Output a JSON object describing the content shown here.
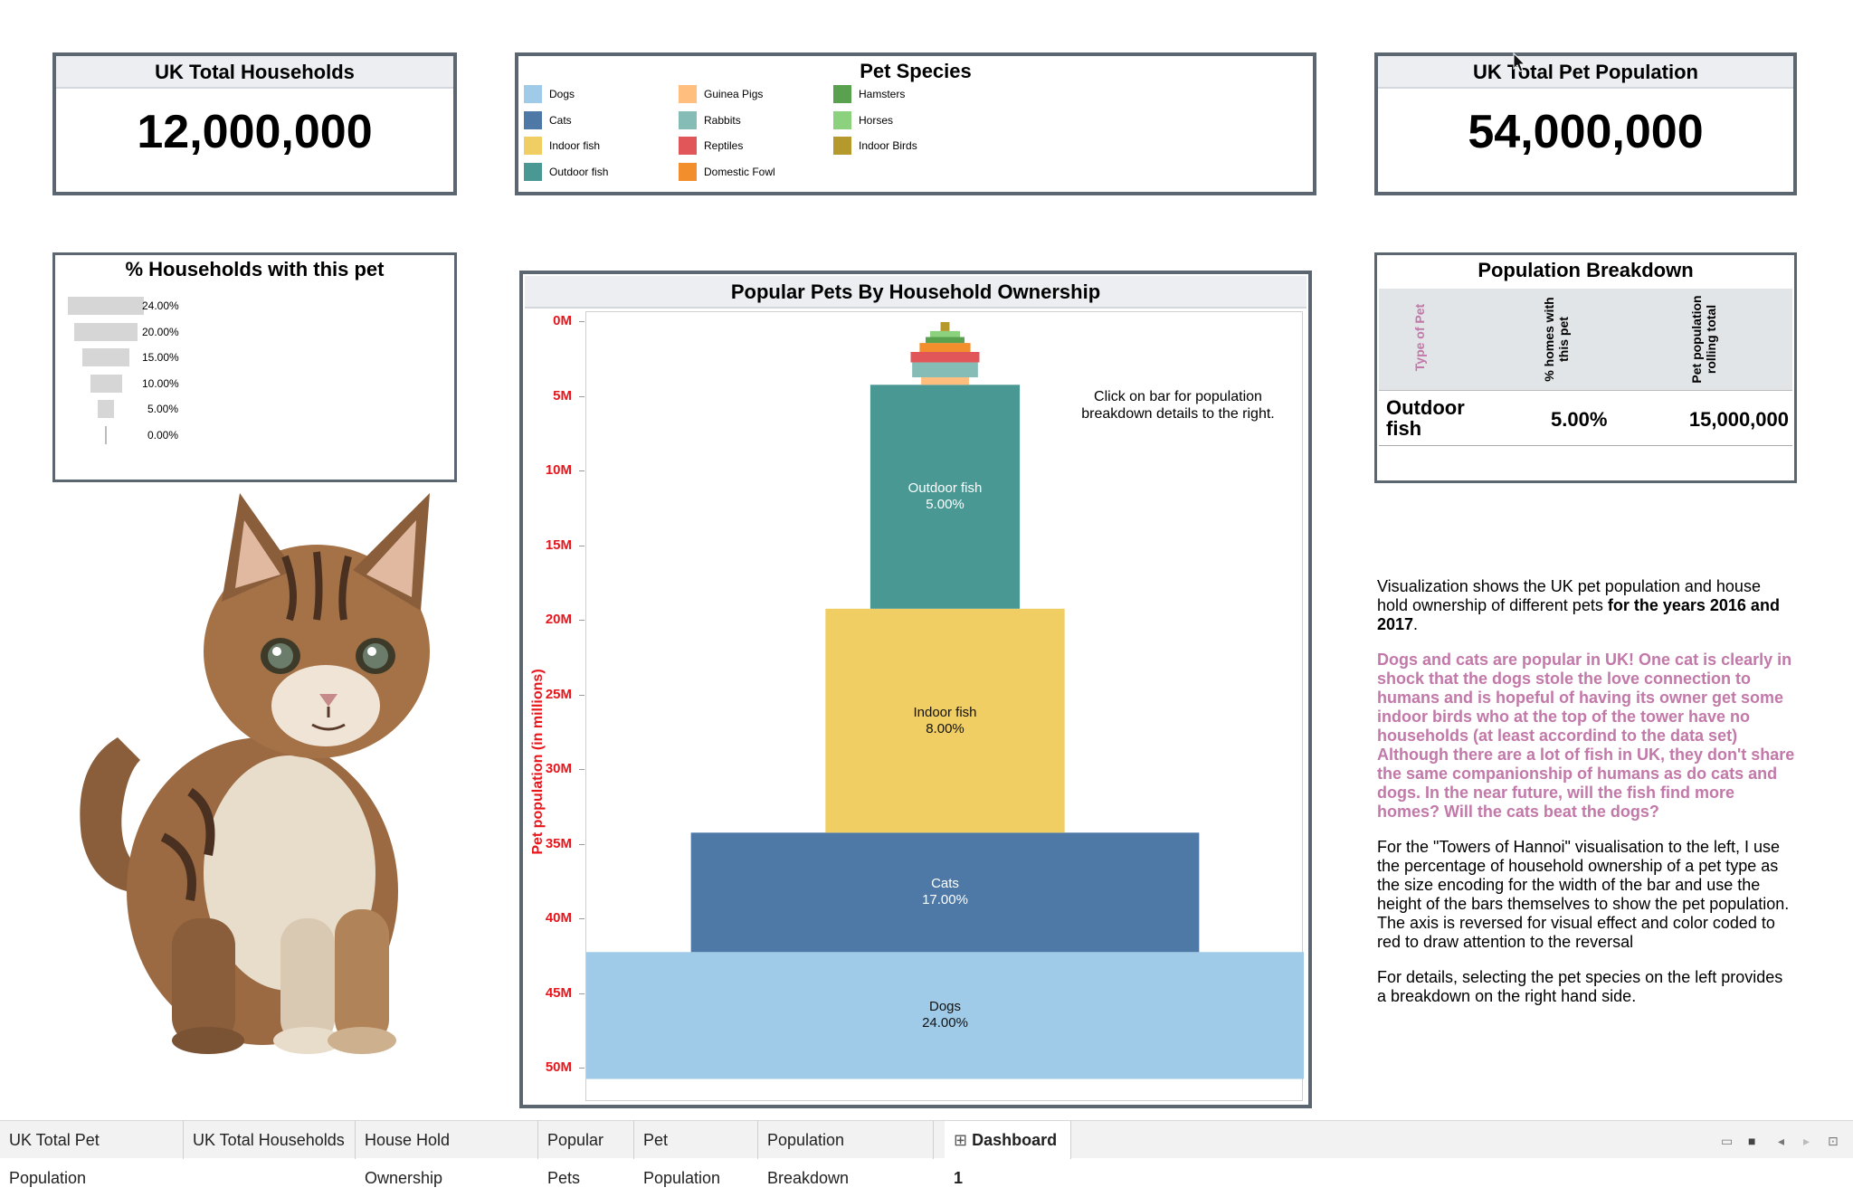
{
  "kpi_households": {
    "title": "UK Total Households",
    "value": "12,000,000"
  },
  "kpi_pets": {
    "title": "UK Total Pet Population",
    "value": "54,000,000"
  },
  "legend": {
    "title": "Pet Species",
    "items": [
      {
        "label": "Dogs",
        "color": "#a0cbe8"
      },
      {
        "label": "Cats",
        "color": "#4e79a7"
      },
      {
        "label": "Indoor fish",
        "color": "#f1ce63"
      },
      {
        "label": "Outdoor fish",
        "color": "#499894"
      },
      {
        "label": "Guinea Pigs",
        "color": "#ffbe7d"
      },
      {
        "label": "Rabbits",
        "color": "#86bcb6"
      },
      {
        "label": "Reptiles",
        "color": "#e15759"
      },
      {
        "label": "Domestic Fowl",
        "color": "#f28e2b"
      },
      {
        "label": "Hamsters",
        "color": "#59a14f"
      },
      {
        "label": "Horses",
        "color": "#8cd17d"
      },
      {
        "label": "Indoor Birds",
        "color": "#b6992d"
      }
    ]
  },
  "households_panel": {
    "title": "% Households with this pet",
    "bars": [
      {
        "label": "24.00%",
        "value": 24
      },
      {
        "label": "20.00%",
        "value": 20
      },
      {
        "label": "15.00%",
        "value": 15
      },
      {
        "label": "10.00%",
        "value": 10
      },
      {
        "label": "5.00%",
        "value": 5
      },
      {
        "label": "0.00%",
        "value": 0
      }
    ]
  },
  "chart": {
    "title": "Popular Pets  By Household Ownership",
    "ylabel": "Pet population (in millions)",
    "note": "Click on bar for population breakdown details to the right.",
    "ticks": [
      "0M",
      "5M",
      "10M",
      "15M",
      "20M",
      "25M",
      "30M",
      "35M",
      "40M",
      "45M",
      "50M"
    ]
  },
  "chart_data": {
    "type": "bar",
    "title": "Popular Pets  By Household Ownership",
    "ylabel": "Pet population (in millions)",
    "ylim": [
      0,
      50
    ],
    "y_reversed": true,
    "series": [
      {
        "name": "Dogs",
        "population_m": 8.5,
        "household_pct": 24,
        "color": "#a0cbe8"
      },
      {
        "name": "Cats",
        "population_m": 8.0,
        "household_pct": 17,
        "color": "#4e79a7"
      },
      {
        "name": "Indoor fish",
        "population_m": 15.0,
        "household_pct": 8,
        "color": "#f1ce63"
      },
      {
        "name": "Outdoor fish",
        "population_m": 15.0,
        "household_pct": 5,
        "color": "#499894"
      },
      {
        "name": "Guinea Pigs",
        "population_m": 0.5,
        "household_pct": 1.6,
        "color": "#ffbe7d"
      },
      {
        "name": "Rabbits",
        "population_m": 1.0,
        "household_pct": 2.2,
        "color": "#86bcb6"
      },
      {
        "name": "Reptiles",
        "population_m": 0.7,
        "household_pct": 2.3,
        "color": "#e15759"
      },
      {
        "name": "Domestic Fowl",
        "population_m": 0.6,
        "household_pct": 1.7,
        "color": "#f28e2b"
      },
      {
        "name": "Hamsters",
        "population_m": 0.4,
        "household_pct": 1.3,
        "color": "#59a14f"
      },
      {
        "name": "Horses",
        "population_m": 0.4,
        "household_pct": 1.0,
        "color": "#8cd17d"
      },
      {
        "name": "Indoor Birds",
        "population_m": 0.6,
        "household_pct": 0.3,
        "color": "#b6992d"
      }
    ],
    "bar_labels": [
      {
        "name": "Dogs",
        "pct": "24.00%"
      },
      {
        "name": "Cats",
        "pct": "17.00%"
      },
      {
        "name": "Indoor fish",
        "pct": "8.00%"
      },
      {
        "name": "Outdoor fish",
        "pct": "5.00%"
      }
    ]
  },
  "breakdown": {
    "title": "Population Breakdown",
    "headers": [
      "Type of Pet",
      "% homes with this pet",
      "Pet population rolling total"
    ],
    "row": {
      "type": "Outdoor fish",
      "pct": "5.00%",
      "total": "15,000,000"
    }
  },
  "description": {
    "p1_a": "Visualization shows the UK pet population and house hold ownership of different pets ",
    "p1_b": "for the years 2016 and 2017",
    "p1_c": ".",
    "p2": "Dogs and cats are popular in UK! One cat is clearly in shock that the dogs stole the love connection to humans and is hopeful of having its owner get some indoor birds who at the top of the tower have no households (at least accordind to the data set) Although there are a lot of fish in UK, they don't share the same companionship of humans as do cats and dogs. In the near future, will the fish find more homes? Will the cats beat the dogs?",
    "p3": "For the \"Towers of Hannoi\" visualisation to the left, I use the percentage of household ownership of a pet type as the size encoding for the width of the bar and use the height of the bars themselves to show the pet population. The axis is reversed for visual effect and color  coded to red to draw attention to the reversal",
    "p4": "For details, selecting the pet species on the left provides a breakdown on the right hand side.",
    "p2_color": "#c278a8"
  },
  "tabs": [
    {
      "label": "UK Total Pet Population"
    },
    {
      "label": "UK Total Households"
    },
    {
      "label": "House Hold Ownership"
    },
    {
      "label": "Popular Pets"
    },
    {
      "label": "Pet Population"
    },
    {
      "label": "Population Breakdown"
    },
    {
      "label": "Dashboard 1",
      "active": true
    }
  ]
}
